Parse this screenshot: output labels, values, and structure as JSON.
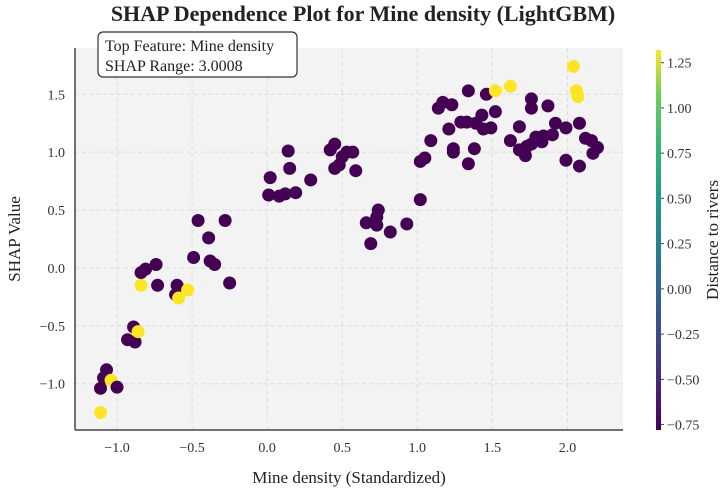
{
  "chart_data": {
    "type": "scatter",
    "title": "SHAP Dependence Plot for Mine density (LightGBM)",
    "xlabel": "Mine density (Standardized)",
    "ylabel": "SHAP Value",
    "xlim": [
      -1.28,
      2.37
    ],
    "ylim": [
      -1.4,
      1.9
    ],
    "xticks": [
      -1.0,
      -0.5,
      0.0,
      0.5,
      1.0,
      1.5,
      2.0
    ],
    "xtick_labels": [
      "−1.0",
      "−0.5",
      "0.0",
      "0.5",
      "1.0",
      "1.5",
      "2.0"
    ],
    "yticks": [
      -1.0,
      -0.5,
      0.0,
      0.5,
      1.0,
      1.5
    ],
    "ytick_labels": [
      "−1.0",
      "−0.5",
      "0.0",
      "0.5",
      "1.0",
      "1.5"
    ],
    "grid": true,
    "annotation": {
      "line1": "Top Feature: Mine density",
      "line2": "SHAP Range: 3.0008",
      "placement": "top-left"
    },
    "colorbar": {
      "label": "Distance to rivers",
      "range": [
        -0.78,
        1.32
      ],
      "colormap": "viridis",
      "ticks": [
        1.25,
        1.0,
        0.75,
        0.5,
        0.25,
        0.0,
        -0.25,
        -0.5,
        -0.75
      ],
      "tick_labels": [
        "1.25",
        "1.00",
        "0.75",
        "0.50",
        "0.25",
        "0.00",
        "−0.25",
        "−0.50",
        "−0.75"
      ]
    },
    "colors": {
      "low": "#440154",
      "high": "#fde725"
    },
    "points": [
      [
        -1.11,
        -1.25,
        1.3
      ],
      [
        -1.11,
        -1.04,
        -0.78
      ],
      [
        -1.09,
        -0.95,
        -0.78
      ],
      [
        -1.07,
        -0.88,
        -0.78
      ],
      [
        -1.04,
        -0.97,
        1.3
      ],
      [
        -1.0,
        -1.03,
        -0.78
      ],
      [
        -0.93,
        -0.62,
        -0.78
      ],
      [
        -0.88,
        -0.64,
        -0.78
      ],
      [
        -0.89,
        -0.51,
        -0.78
      ],
      [
        -0.86,
        -0.55,
        1.3
      ],
      [
        -0.84,
        -0.15,
        1.3
      ],
      [
        -0.84,
        -0.04,
        -0.78
      ],
      [
        -0.81,
        -0.01,
        -0.78
      ],
      [
        -0.74,
        0.03,
        -0.78
      ],
      [
        -0.73,
        -0.15,
        -0.78
      ],
      [
        -0.6,
        -0.15,
        -0.78
      ],
      [
        -0.61,
        -0.23,
        -0.78
      ],
      [
        -0.59,
        -0.26,
        1.3
      ],
      [
        -0.53,
        -0.19,
        1.3
      ],
      [
        -0.49,
        0.09,
        -0.78
      ],
      [
        -0.46,
        0.41,
        -0.78
      ],
      [
        -0.39,
        0.26,
        -0.78
      ],
      [
        -0.38,
        0.06,
        -0.78
      ],
      [
        -0.35,
        0.03,
        -0.78
      ],
      [
        -0.28,
        0.41,
        -0.78
      ],
      [
        -0.25,
        -0.13,
        -0.78
      ],
      [
        0.01,
        0.63,
        -0.78
      ],
      [
        0.02,
        0.78,
        -0.78
      ],
      [
        0.08,
        0.62,
        -0.78
      ],
      [
        0.12,
        0.64,
        -0.78
      ],
      [
        0.14,
        1.01,
        -0.78
      ],
      [
        0.15,
        0.86,
        -0.78
      ],
      [
        0.19,
        0.65,
        -0.78
      ],
      [
        0.29,
        0.76,
        -0.78
      ],
      [
        0.42,
        1.02,
        -0.78
      ],
      [
        0.45,
        1.07,
        -0.78
      ],
      [
        0.45,
        0.86,
        -0.78
      ],
      [
        0.48,
        0.89,
        -0.78
      ],
      [
        0.5,
        0.96,
        -0.78
      ],
      [
        0.53,
        1.0,
        -0.78
      ],
      [
        0.57,
        1.0,
        -0.78
      ],
      [
        0.59,
        0.84,
        -0.78
      ],
      [
        0.66,
        0.39,
        -0.78
      ],
      [
        0.69,
        0.21,
        -0.78
      ],
      [
        0.73,
        0.44,
        -0.78
      ],
      [
        0.73,
        0.37,
        -0.78
      ],
      [
        0.74,
        0.5,
        -0.78
      ],
      [
        0.82,
        0.31,
        -0.78
      ],
      [
        0.93,
        0.38,
        -0.78
      ],
      [
        1.02,
        0.59,
        -0.78
      ],
      [
        1.02,
        0.92,
        -0.78
      ],
      [
        1.05,
        0.95,
        -0.78
      ],
      [
        1.09,
        1.1,
        -0.78
      ],
      [
        1.14,
        1.38,
        -0.78
      ],
      [
        1.17,
        1.43,
        -0.78
      ],
      [
        1.23,
        1.41,
        -0.78
      ],
      [
        1.21,
        1.2,
        -0.78
      ],
      [
        1.24,
        1.03,
        -0.78
      ],
      [
        1.24,
        1.0,
        -0.78
      ],
      [
        1.29,
        1.26,
        -0.78
      ],
      [
        1.33,
        1.26,
        -0.78
      ],
      [
        1.34,
        1.53,
        -0.78
      ],
      [
        1.34,
        0.9,
        -0.78
      ],
      [
        1.38,
        1.03,
        -0.78
      ],
      [
        1.39,
        1.25,
        -0.78
      ],
      [
        1.43,
        1.32,
        -0.78
      ],
      [
        1.44,
        1.2,
        -0.78
      ],
      [
        1.46,
        1.5,
        -0.78
      ],
      [
        1.49,
        1.21,
        -0.78
      ],
      [
        1.52,
        1.53,
        1.3
      ],
      [
        1.52,
        1.35,
        -0.78
      ],
      [
        1.62,
        1.57,
        1.3
      ],
      [
        1.62,
        1.1,
        -0.78
      ],
      [
        1.68,
        1.22,
        -0.78
      ],
      [
        1.68,
        1.02,
        -0.78
      ],
      [
        1.72,
        0.97,
        -0.78
      ],
      [
        1.73,
        1.05,
        -0.78
      ],
      [
        1.76,
        1.46,
        -0.78
      ],
      [
        1.76,
        1.38,
        -0.78
      ],
      [
        1.76,
        1.07,
        -0.78
      ],
      [
        1.79,
        1.13,
        -0.78
      ],
      [
        1.83,
        1.09,
        -0.78
      ],
      [
        1.84,
        1.14,
        -0.78
      ],
      [
        1.87,
        1.4,
        -0.78
      ],
      [
        1.9,
        1.15,
        -0.78
      ],
      [
        1.92,
        1.25,
        -0.78
      ],
      [
        1.99,
        1.21,
        -0.78
      ],
      [
        1.99,
        0.93,
        -0.78
      ],
      [
        2.04,
        1.74,
        1.3
      ],
      [
        2.06,
        1.53,
        1.3
      ],
      [
        2.07,
        1.48,
        1.3
      ],
      [
        2.08,
        1.25,
        -0.78
      ],
      [
        2.08,
        0.88,
        -0.78
      ],
      [
        2.12,
        1.12,
        -0.78
      ],
      [
        2.16,
        1.1,
        -0.78
      ],
      [
        2.17,
        0.99,
        -0.78
      ],
      [
        2.2,
        1.04,
        -0.78
      ]
    ]
  }
}
